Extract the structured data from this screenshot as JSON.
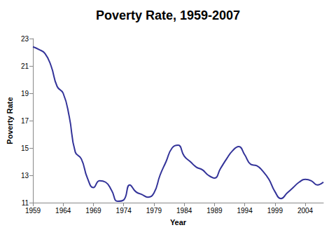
{
  "chart_data": {
    "type": "line",
    "title": "Poverty Rate, 1959-2007",
    "x_label": "Year",
    "y_label": "Poverty Rate",
    "x": [
      1959,
      1960,
      1961,
      1962,
      1963,
      1964,
      1965,
      1966,
      1967,
      1968,
      1969,
      1970,
      1971,
      1972,
      1973,
      1974,
      1975,
      1976,
      1977,
      1978,
      1979,
      1980,
      1981,
      1982,
      1983,
      1984,
      1985,
      1986,
      1987,
      1988,
      1989,
      1990,
      1991,
      1992,
      1993,
      1994,
      1995,
      1996,
      1997,
      1998,
      1999,
      2000,
      2001,
      2002,
      2003,
      2004,
      2005,
      2006,
      2007
    ],
    "values": [
      22.4,
      22.2,
      21.9,
      21.0,
      19.5,
      19.0,
      17.3,
      14.7,
      14.2,
      12.8,
      12.1,
      12.6,
      12.5,
      11.9,
      11.1,
      11.2,
      12.3,
      11.8,
      11.6,
      11.4,
      11.7,
      13.0,
      14.0,
      15.0,
      15.2,
      14.4,
      14.0,
      13.6,
      13.4,
      13.0,
      12.8,
      13.5,
      14.2,
      14.8,
      15.1,
      14.5,
      13.8,
      13.7,
      13.3,
      12.7,
      11.8,
      11.3,
      11.7,
      12.1,
      12.5,
      12.7,
      12.6,
      12.3,
      12.5
    ],
    "color": "#333399",
    "xlim": [
      1959,
      2007
    ],
    "ylim": [
      11,
      23
    ],
    "xticks": [
      1959,
      1964,
      1969,
      1974,
      1979,
      1984,
      1989,
      1994,
      1999,
      2004
    ],
    "yticks": [
      11,
      13,
      15,
      17,
      19,
      21,
      23
    ],
    "grid": false,
    "marker": "none"
  }
}
